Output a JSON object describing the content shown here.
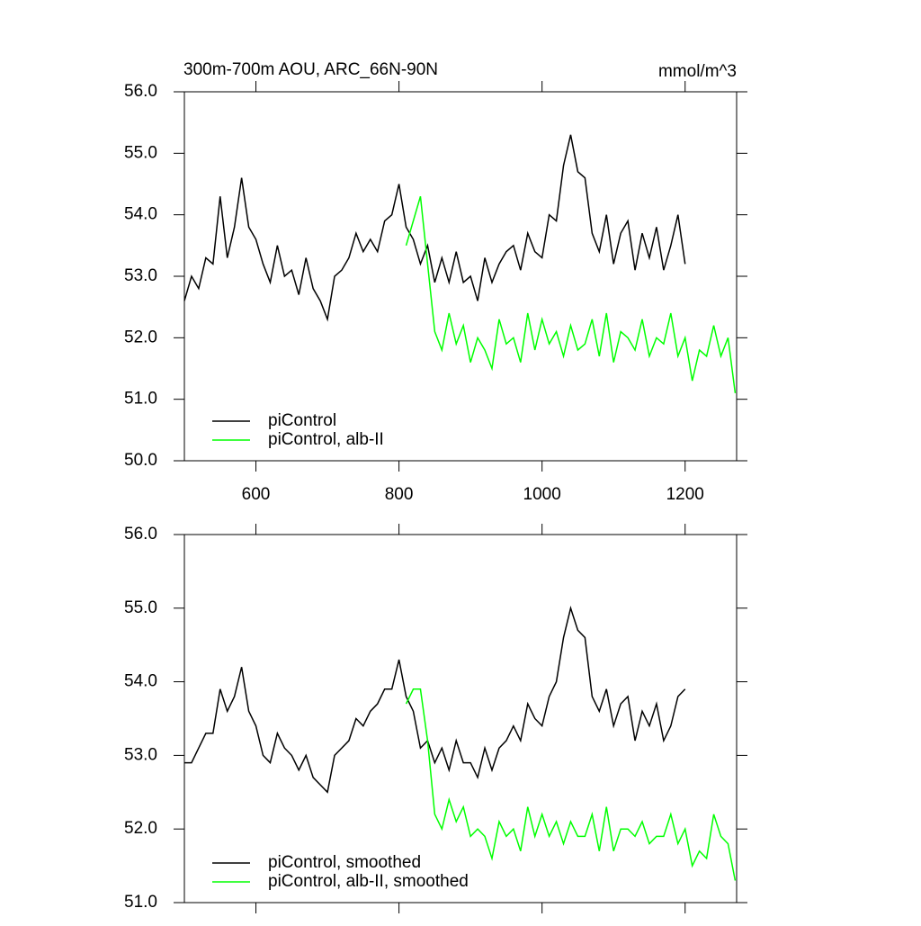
{
  "chart_data": [
    {
      "type": "line",
      "title": "300m-700m AOU, ARC_66N-90N",
      "units": "mmol/m^3",
      "xlim": [
        500,
        1272
      ],
      "ylim": [
        50,
        56
      ],
      "xticks": [
        600,
        800,
        1000,
        1200
      ],
      "show_xtick_labels": true,
      "yticks": [
        {
          "value": 50,
          "label": "50.0"
        },
        {
          "value": 51,
          "label": "51.0"
        },
        {
          "value": 52,
          "label": "52.0"
        },
        {
          "value": 53,
          "label": "53.0"
        },
        {
          "value": 54,
          "label": "54.0"
        },
        {
          "value": 55,
          "label": "55.0"
        },
        {
          "value": 56,
          "label": "56.0"
        }
      ],
      "legend": "lower-left",
      "series": [
        {
          "name": "piControl",
          "color": "#000000",
          "x": [
            500,
            510,
            520,
            530,
            540,
            550,
            560,
            570,
            580,
            590,
            600,
            610,
            620,
            630,
            640,
            650,
            660,
            670,
            680,
            690,
            700,
            710,
            720,
            730,
            740,
            750,
            760,
            770,
            780,
            790,
            800,
            810,
            820,
            830,
            840,
            850,
            860,
            870,
            880,
            890,
            900,
            910,
            920,
            930,
            940,
            950,
            960,
            970,
            980,
            990,
            1000,
            1010,
            1020,
            1030,
            1040,
            1050,
            1060,
            1070,
            1080,
            1090,
            1100,
            1110,
            1120,
            1130,
            1140,
            1150,
            1160,
            1170,
            1180,
            1190,
            1200
          ],
          "values": [
            52.6,
            53.0,
            52.8,
            53.3,
            53.2,
            54.3,
            53.3,
            53.8,
            54.6,
            53.8,
            53.6,
            53.2,
            52.9,
            53.5,
            53.0,
            53.1,
            52.7,
            53.3,
            52.8,
            52.6,
            52.3,
            53.0,
            53.1,
            53.3,
            53.7,
            53.4,
            53.6,
            53.4,
            53.9,
            54.0,
            54.5,
            53.8,
            53.6,
            53.2,
            53.5,
            52.9,
            53.3,
            52.9,
            53.4,
            52.9,
            53.0,
            52.6,
            53.3,
            52.9,
            53.2,
            53.4,
            53.5,
            53.1,
            53.7,
            53.4,
            53.3,
            54.0,
            53.9,
            54.8,
            55.3,
            54.7,
            54.6,
            53.7,
            53.4,
            54.0,
            53.2,
            53.7,
            53.9,
            53.1,
            53.7,
            53.3,
            53.8,
            53.1,
            53.5,
            54.0,
            53.2
          ]
        },
        {
          "name": "piControl, alb-II",
          "color": "#00ff00",
          "x": [
            810,
            820,
            830,
            840,
            850,
            860,
            870,
            880,
            890,
            900,
            910,
            920,
            930,
            940,
            950,
            960,
            970,
            980,
            990,
            1000,
            1010,
            1020,
            1030,
            1040,
            1050,
            1060,
            1070,
            1080,
            1090,
            1100,
            1110,
            1120,
            1130,
            1140,
            1150,
            1160,
            1170,
            1180,
            1190,
            1200,
            1210,
            1220,
            1230,
            1240,
            1250,
            1260,
            1270
          ],
          "values": [
            53.5,
            53.9,
            54.3,
            53.2,
            52.1,
            51.8,
            52.4,
            51.9,
            52.2,
            51.6,
            52.0,
            51.8,
            51.5,
            52.3,
            51.9,
            52.0,
            51.6,
            52.4,
            51.8,
            52.3,
            51.9,
            52.1,
            51.7,
            52.2,
            51.8,
            51.9,
            52.3,
            51.7,
            52.4,
            51.6,
            52.1,
            52.0,
            51.8,
            52.3,
            51.7,
            52.0,
            51.9,
            52.4,
            51.7,
            52.0,
            51.3,
            51.8,
            51.7,
            52.2,
            51.7,
            52.0,
            51.1
          ]
        }
      ]
    },
    {
      "type": "line",
      "xlim": [
        500,
        1272
      ],
      "ylim": [
        51,
        56
      ],
      "xticks": [
        600,
        800,
        1000,
        1200
      ],
      "show_xtick_labels": false,
      "yticks": [
        {
          "value": 51,
          "label": "51.0"
        },
        {
          "value": 52,
          "label": "52.0"
        },
        {
          "value": 53,
          "label": "53.0"
        },
        {
          "value": 54,
          "label": "54.0"
        },
        {
          "value": 55,
          "label": "55.0"
        },
        {
          "value": 56,
          "label": "56.0"
        }
      ],
      "legend": "lower-left",
      "series": [
        {
          "name": "piControl, smoothed",
          "color": "#000000",
          "x": [
            500,
            510,
            520,
            530,
            540,
            550,
            560,
            570,
            580,
            590,
            600,
            610,
            620,
            630,
            640,
            650,
            660,
            670,
            680,
            690,
            700,
            710,
            720,
            730,
            740,
            750,
            760,
            770,
            780,
            790,
            800,
            810,
            820,
            830,
            840,
            850,
            860,
            870,
            880,
            890,
            900,
            910,
            920,
            930,
            940,
            950,
            960,
            970,
            980,
            990,
            1000,
            1010,
            1020,
            1030,
            1040,
            1050,
            1060,
            1070,
            1080,
            1090,
            1100,
            1110,
            1120,
            1130,
            1140,
            1150,
            1160,
            1170,
            1180,
            1190,
            1200
          ],
          "values": [
            52.9,
            52.9,
            53.1,
            53.3,
            53.3,
            53.9,
            53.6,
            53.8,
            54.2,
            53.6,
            53.4,
            53.0,
            52.9,
            53.3,
            53.1,
            53.0,
            52.8,
            53.0,
            52.7,
            52.6,
            52.5,
            53.0,
            53.1,
            53.2,
            53.5,
            53.4,
            53.6,
            53.7,
            53.9,
            53.9,
            54.3,
            53.8,
            53.6,
            53.1,
            53.2,
            52.9,
            53.1,
            52.8,
            53.2,
            52.9,
            52.9,
            52.7,
            53.1,
            52.8,
            53.1,
            53.2,
            53.4,
            53.2,
            53.7,
            53.5,
            53.4,
            53.8,
            54.0,
            54.6,
            55.0,
            54.7,
            54.6,
            53.8,
            53.6,
            53.9,
            53.4,
            53.7,
            53.8,
            53.2,
            53.6,
            53.4,
            53.7,
            53.2,
            53.4,
            53.8,
            53.9
          ]
        },
        {
          "name": "piControl, alb-II, smoothed",
          "color": "#00ff00",
          "x": [
            810,
            820,
            830,
            840,
            850,
            860,
            870,
            880,
            890,
            900,
            910,
            920,
            930,
            940,
            950,
            960,
            970,
            980,
            990,
            1000,
            1010,
            1020,
            1030,
            1040,
            1050,
            1060,
            1070,
            1080,
            1090,
            1100,
            1110,
            1120,
            1130,
            1140,
            1150,
            1160,
            1170,
            1180,
            1190,
            1200,
            1210,
            1220,
            1230,
            1240,
            1250,
            1260,
            1270
          ],
          "values": [
            53.7,
            53.9,
            53.9,
            53.2,
            52.2,
            52.0,
            52.4,
            52.1,
            52.3,
            51.9,
            52.0,
            51.9,
            51.6,
            52.1,
            51.9,
            52.0,
            51.7,
            52.3,
            51.9,
            52.2,
            51.9,
            52.1,
            51.8,
            52.1,
            51.9,
            51.9,
            52.2,
            51.7,
            52.3,
            51.7,
            52.0,
            52.0,
            51.9,
            52.1,
            51.8,
            51.9,
            51.9,
            52.2,
            51.8,
            52.0,
            51.5,
            51.7,
            51.6,
            52.2,
            51.9,
            51.8,
            51.3
          ]
        }
      ]
    }
  ]
}
